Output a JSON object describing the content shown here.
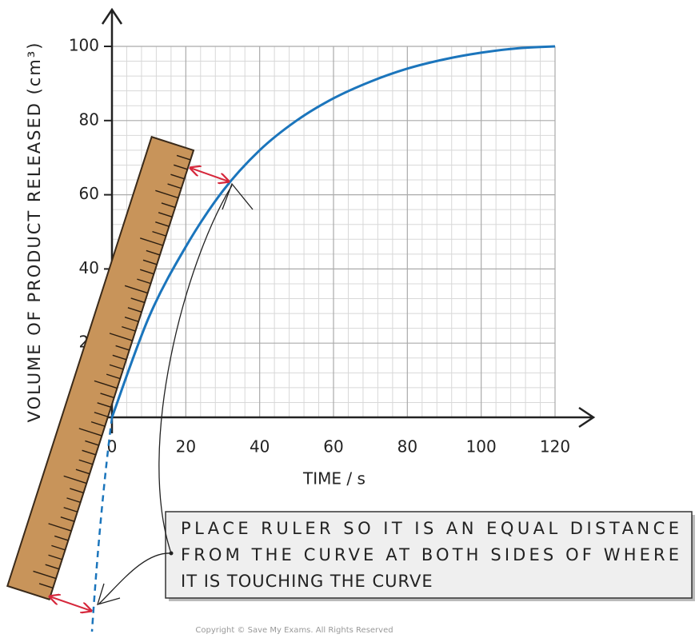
{
  "chart_data": {
    "type": "line",
    "ylabel": "VOLUME OF PRODUCT RELEASED (cm³)",
    "xlabel": "TIME / s",
    "x": [
      0,
      10,
      20,
      30,
      40,
      50,
      60,
      70,
      80,
      90,
      100,
      110,
      120
    ],
    "series": [
      {
        "color": "#1b75bc",
        "values": [
          0,
          27,
          46,
          61,
          72,
          80,
          86,
          90.5,
          94,
          96.5,
          98.3,
          99.5,
          100
        ]
      }
    ],
    "xlim": [
      0,
      120
    ],
    "xticks": [
      0,
      20,
      40,
      60,
      80,
      100,
      120
    ],
    "ylim": [
      0,
      100
    ],
    "yticks": [
      20,
      40,
      60,
      80,
      100
    ],
    "grid": true,
    "annotation": [
      "PLACE RULER SO IT IS AN EQUAL DISTANCE",
      "FROM THE CURVE AT BOTH SIDES OF WHERE",
      "IT IS TOUCHING THE CURVE"
    ],
    "copyright": "Copyright © Save My Exams. All Rights Reserved"
  }
}
